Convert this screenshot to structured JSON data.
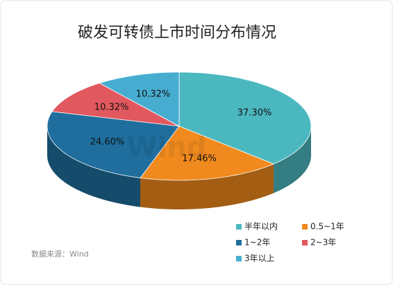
{
  "chart_data": {
    "type": "pie3d",
    "title": "破发可转债上市时间分布情况",
    "categories": [
      "半年以内",
      "0.5~1年",
      "1~2年",
      "2~3年",
      "3年以上"
    ],
    "values": [
      37.3,
      17.46,
      24.6,
      10.32,
      10.32
    ],
    "value_labels": [
      "37.30%",
      "17.46%",
      "24.60%",
      "10.32%",
      "10.32%"
    ],
    "colors": [
      "#4bb8c0",
      "#f08a1e",
      "#1f6e9e",
      "#e2585f",
      "#47add0"
    ],
    "source": "数据来源：Wind",
    "watermark": "Wind"
  }
}
